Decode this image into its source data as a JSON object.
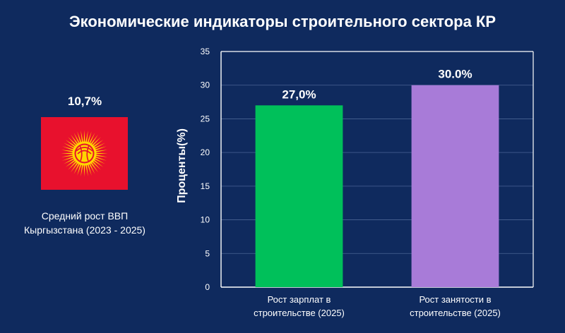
{
  "header": {
    "title": "Экономические индикаторы строительного сектора КР"
  },
  "gdp": {
    "value_label": "10,7%",
    "caption_line1": "Средний рост ВВП",
    "caption_line2": "Кыргызстана (2023 - 2025)",
    "flag_icon": "kyrgyzstan-flag-icon"
  },
  "chart_data": {
    "type": "bar",
    "categories": [
      [
        "Рост зарплат в",
        "строительстве (2025)"
      ],
      [
        "Рост занятости в",
        "строительстве (2025)"
      ]
    ],
    "values": [
      27.0,
      30.0
    ],
    "data_labels": [
      "27,0%",
      "30.0%"
    ],
    "colors": [
      "#00c05a",
      "#a87bd8"
    ],
    "xlabel": "",
    "ylabel": "Проценты(%)",
    "ylim": [
      0,
      35
    ],
    "yticks": [
      0,
      5,
      10,
      15,
      20,
      25,
      30,
      35
    ],
    "grid": true,
    "background": "#0f2a5e"
  }
}
